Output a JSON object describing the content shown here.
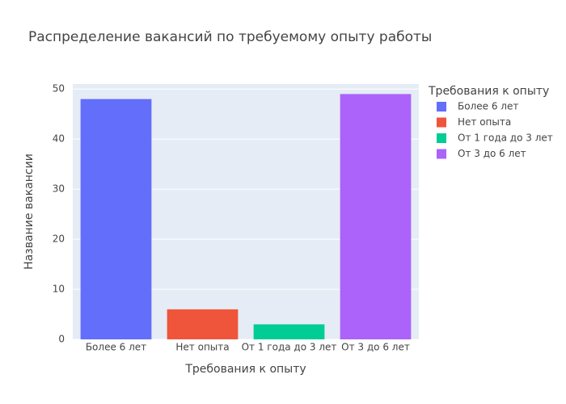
{
  "chart_data": {
    "type": "bar",
    "title": "Распределение вакансий по требуемому опыту работы",
    "x_label": "Требования к опыту",
    "y_label": "Название вакансии",
    "legend_title": "Требования к опыту",
    "categories": [
      "Более 6 лет",
      "Нет опыта",
      "От 1 года до 3 лет",
      "От 3 до 6 лет"
    ],
    "values": [
      48,
      6,
      3,
      49
    ],
    "colors": [
      "#636efa",
      "#ef553b",
      "#00cc96",
      "#ab63fa"
    ],
    "ylim": [
      0,
      51
    ],
    "yticks": [
      0,
      10,
      20,
      30,
      40,
      50
    ],
    "grid": true,
    "legend": "right"
  }
}
